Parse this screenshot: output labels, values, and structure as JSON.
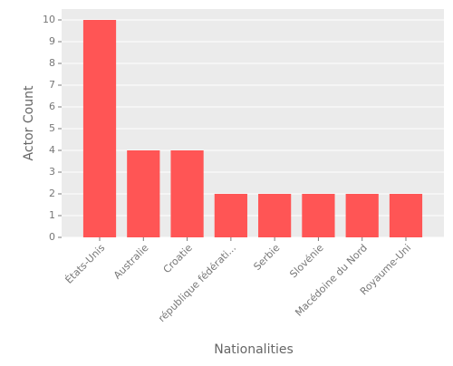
{
  "chart_data": {
    "type": "bar",
    "xlabel": "Nationalities",
    "ylabel": "Actor Count",
    "categories": [
      "États-Unis",
      "Australie",
      "Croatie",
      "république fédérati...",
      "Serbie",
      "Slovénie",
      "Macédoine du Nord",
      "Royaume-Uni"
    ],
    "values": [
      10,
      4,
      4,
      2,
      2,
      2,
      2,
      2
    ],
    "color": "#ff5555",
    "ylim": [
      0,
      10.5
    ],
    "yticks": [
      0,
      1,
      2,
      3,
      4,
      5,
      6,
      7,
      8,
      9,
      10
    ],
    "grid": true
  }
}
